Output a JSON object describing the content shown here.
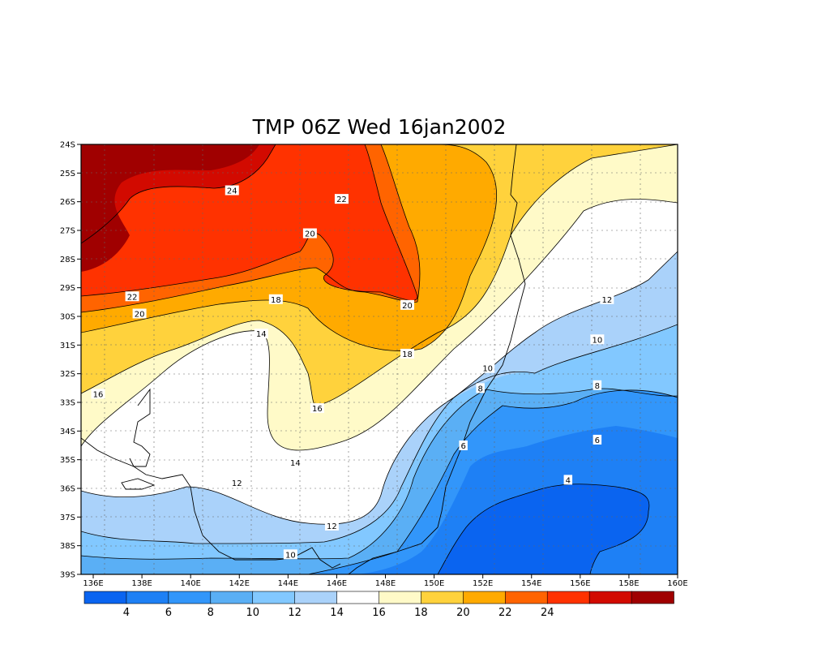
{
  "title": "TMP 06Z Wed 16jan2002",
  "chart_data": {
    "type": "contour",
    "variable": "TMP",
    "title": "TMP 06Z Wed 16jan2002",
    "xlim": [
      135.5,
      160
    ],
    "ylim": [
      -39,
      -24
    ],
    "x_ticks": [
      "136E",
      "138E",
      "140E",
      "142E",
      "144E",
      "146E",
      "148E",
      "150E",
      "152E",
      "154E",
      "156E",
      "158E",
      "160E"
    ],
    "y_ticks": [
      "24S",
      "25S",
      "26S",
      "27S",
      "28S",
      "29S",
      "30S",
      "31S",
      "32S",
      "33S",
      "34S",
      "35S",
      "36S",
      "37S",
      "38S",
      "39S"
    ],
    "grid": true,
    "contour_levels": [
      4,
      6,
      8,
      10,
      12,
      14,
      16,
      18,
      20,
      22,
      24
    ],
    "colorbar_ticks": [
      "4",
      "6",
      "8",
      "10",
      "12",
      "14",
      "16",
      "18",
      "20",
      "22",
      "24"
    ],
    "colorbar_colors": [
      "#0a64f0",
      "#1e80f5",
      "#3296fa",
      "#5aaff5",
      "#82c8ff",
      "#aad2fa",
      "#ffffff",
      "#fffac8",
      "#ffd23c",
      "#ffaa00",
      "#ff6400",
      "#ff3200",
      "#d20a00",
      "#a00000"
    ],
    "contour_labels": [
      {
        "value": "24",
        "lon": 141.7,
        "lat": -25.6
      },
      {
        "value": "22",
        "lon": 146.2,
        "lat": -25.9
      },
      {
        "value": "22",
        "lon": 137.6,
        "lat": -29.3
      },
      {
        "value": "20",
        "lon": 144.9,
        "lat": -27.1
      },
      {
        "value": "20",
        "lon": 148.9,
        "lat": -29.6
      },
      {
        "value": "20",
        "lon": 137.9,
        "lat": -29.9
      },
      {
        "value": "18",
        "lon": 143.5,
        "lat": -29.4
      },
      {
        "value": "18",
        "lon": 148.9,
        "lat": -31.3
      },
      {
        "value": "16",
        "lon": 136.2,
        "lat": -32.7
      },
      {
        "value": "16",
        "lon": 145.2,
        "lat": -33.2
      },
      {
        "value": "14",
        "lon": 142.9,
        "lat": -30.6
      },
      {
        "value": "14",
        "lon": 144.3,
        "lat": -35.1
      },
      {
        "value": "12",
        "lon": 141.9,
        "lat": -35.8
      },
      {
        "value": "12",
        "lon": 145.8,
        "lat": -37.3
      },
      {
        "value": "12",
        "lon": 157.1,
        "lat": -29.4
      },
      {
        "value": "10",
        "lon": 144.1,
        "lat": -38.3
      },
      {
        "value": "10",
        "lon": 152.2,
        "lat": -31.8
      },
      {
        "value": "10",
        "lon": 156.7,
        "lat": -30.8
      },
      {
        "value": "8",
        "lon": 151.9,
        "lat": -32.5
      },
      {
        "value": "8",
        "lon": 156.7,
        "lat": -32.4
      },
      {
        "value": "6",
        "lon": 151.2,
        "lat": -34.5
      },
      {
        "value": "6",
        "lon": 156.7,
        "lat": -34.3
      },
      {
        "value": "4",
        "lon": 155.5,
        "lat": -35.7
      }
    ]
  }
}
